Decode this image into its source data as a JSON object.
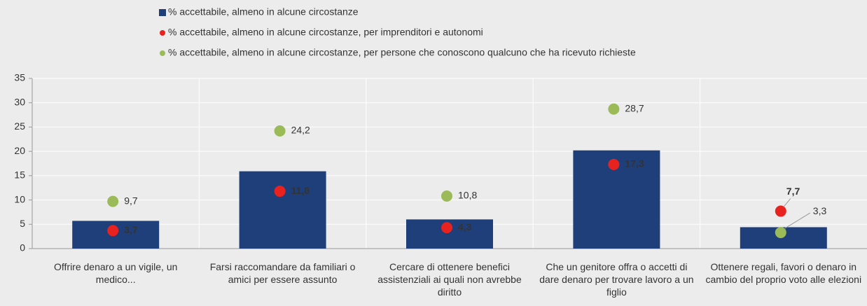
{
  "chart_data": {
    "type": "bar",
    "categories": [
      "Offrire denaro a un vigile, un medico...",
      "Farsi raccomandare da familiari o amici  per essere assunto",
      "Cercare di ottenere benefici assistenziali ai quali non avrebbe diritto",
      "Che un genitore offra o accetti di dare denaro per trovare lavoro a un figlio",
      "Ottenere regali, favori o denaro in cambio del proprio voto alle elezioni"
    ],
    "series": [
      {
        "name": "% accettabile, almeno in alcune circostanze",
        "type": "bar",
        "color": "#1f3f7a",
        "values": [
          5.7,
          15.9,
          6.0,
          20.2,
          4.4
        ]
      },
      {
        "name": "% accettabile, almeno in alcune circostanze, per imprenditori e autonomi",
        "type": "scatter",
        "color": "#e8221e",
        "values": [
          3.7,
          11.8,
          4.3,
          17.3,
          7.7
        ],
        "value_labels": [
          "3,7",
          "11,8",
          "4,3",
          "17,3",
          "7,7"
        ]
      },
      {
        "name": "% accettabile, almeno in alcune circostanze, per persone che conoscono qualcuno che ha ricevuto richieste",
        "type": "scatter",
        "color": "#9bbb59",
        "values": [
          9.7,
          24.2,
          10.8,
          28.7,
          3.3
        ],
        "value_labels": [
          "9,7",
          "24,2",
          "10,8",
          "28,7",
          "3,3"
        ]
      }
    ],
    "ylim": [
      0,
      35
    ],
    "yticks": [
      0,
      5,
      10,
      15,
      20,
      25,
      30,
      35
    ],
    "grid": true
  }
}
